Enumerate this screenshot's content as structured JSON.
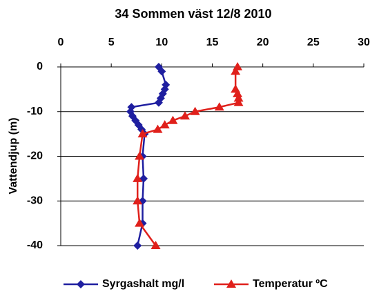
{
  "chart_data": {
    "type": "line",
    "title": "34 Sommen väst 12/8 2010",
    "y_label": "Vattendjup (m)",
    "xlim": [
      0,
      30
    ],
    "xticks": [
      0,
      5,
      10,
      15,
      20,
      25,
      30
    ],
    "ylim": [
      -40,
      0
    ],
    "yticks": [
      0,
      -10,
      -20,
      -30,
      -40
    ],
    "grid": true,
    "legend": "bottom",
    "series": [
      {
        "name": "Syrgashalt mg/l",
        "color": "#1f1fa0",
        "marker": "diamond",
        "x": [
          9.7,
          10.0,
          10.4,
          10.3,
          10.1,
          9.9,
          9.7,
          7.0,
          6.9,
          7.1,
          7.4,
          7.7,
          8.0,
          8.3,
          8.1,
          8.2,
          8.1,
          8.1,
          7.6
        ],
        "values": [
          0,
          -1,
          -4,
          -5,
          -6,
          -7,
          -8,
          -9,
          -10,
          -11,
          -12,
          -13,
          -14,
          -15,
          -20,
          -25,
          -30,
          -35,
          -40
        ]
      },
      {
        "name": "Temperatur ºC",
        "color": "#e0201b",
        "marker": "triangle",
        "x": [
          17.5,
          17.3,
          17.3,
          17.5,
          17.6,
          17.6,
          15.7,
          13.3,
          12.3,
          11.1,
          10.3,
          9.6,
          8.1,
          7.8,
          7.6,
          7.6,
          7.8,
          9.4
        ],
        "values": [
          0,
          -1,
          -5,
          -6,
          -7,
          -8,
          -9,
          -10,
          -11,
          -12,
          -13,
          -14,
          -15,
          -20,
          -25,
          -30,
          -35,
          -40
        ]
      }
    ]
  }
}
